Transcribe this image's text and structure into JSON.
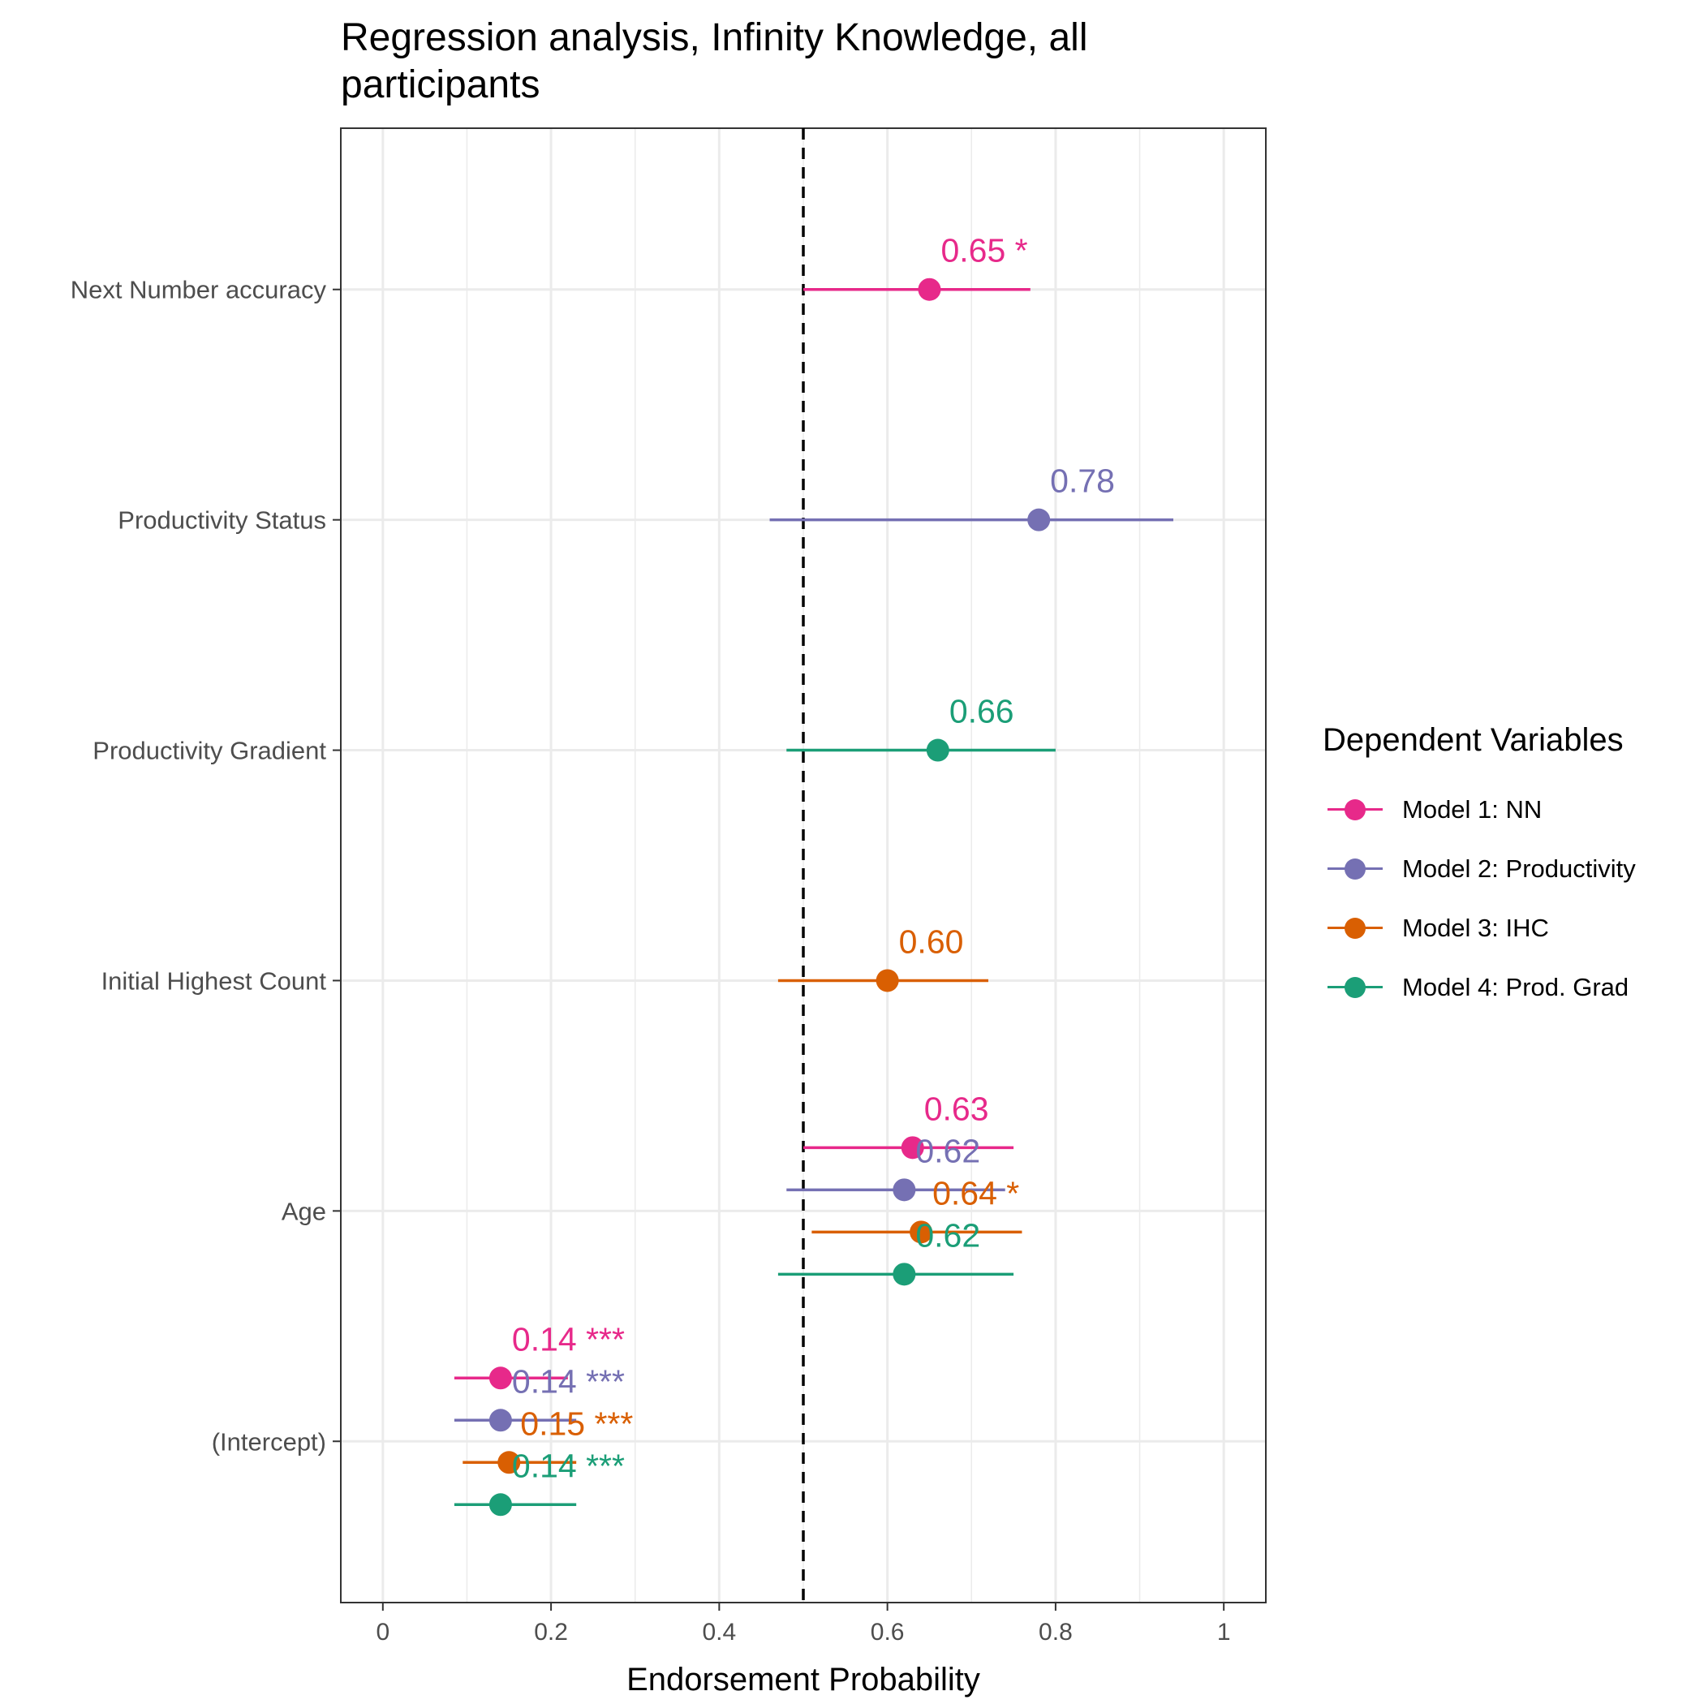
{
  "chart_data": {
    "type": "scatter",
    "title": "Regression analysis, Infinity Knowledge, all participants",
    "xlabel": "Endorsement Probability",
    "ylabel": "",
    "xlim": [
      -0.05,
      1.05
    ],
    "x_ticks": [
      0,
      0.2,
      0.4,
      0.6,
      0.8,
      1
    ],
    "x_tick_labels": [
      "0",
      "0.2",
      "0.4",
      "0.6",
      "0.8",
      "1"
    ],
    "reference_line": 0.5,
    "categories": [
      "Next Number accuracy",
      "Productivity Status",
      "Productivity Gradient",
      "Initial Highest Count",
      "Age",
      "(Intercept)"
    ],
    "legend_title": "Dependent Variables",
    "legend_position": "right",
    "grid": true,
    "series": [
      {
        "name": "Model 1: NN",
        "color": "#E7298A",
        "points": [
          {
            "term": "Next Number accuracy",
            "estimate": 0.65,
            "low": 0.5,
            "high": 0.77,
            "label": "0.65 *"
          },
          {
            "term": "Age",
            "estimate": 0.63,
            "low": 0.5,
            "high": 0.75,
            "label": "0.63"
          },
          {
            "term": "(Intercept)",
            "estimate": 0.14,
            "low": 0.085,
            "high": 0.22,
            "label": "0.14 ***"
          }
        ]
      },
      {
        "name": "Model 2: Productivity",
        "color": "#7570B3",
        "points": [
          {
            "term": "Productivity Status",
            "estimate": 0.78,
            "low": 0.46,
            "high": 0.94,
            "label": "0.78"
          },
          {
            "term": "Age",
            "estimate": 0.62,
            "low": 0.48,
            "high": 0.74,
            "label": "0.62"
          },
          {
            "term": "(Intercept)",
            "estimate": 0.14,
            "low": 0.085,
            "high": 0.23,
            "label": "0.14 ***"
          }
        ]
      },
      {
        "name": "Model 3: IHC",
        "color": "#D95F02",
        "points": [
          {
            "term": "Initial Highest Count",
            "estimate": 0.6,
            "low": 0.47,
            "high": 0.72,
            "label": "0.60"
          },
          {
            "term": "Age",
            "estimate": 0.64,
            "low": 0.51,
            "high": 0.76,
            "label": "0.64 *"
          },
          {
            "term": "(Intercept)",
            "estimate": 0.15,
            "low": 0.095,
            "high": 0.23,
            "label": "0.15 ***"
          }
        ]
      },
      {
        "name": "Model 4: Prod. Grad",
        "color": "#1B9E77",
        "points": [
          {
            "term": "Productivity Gradient",
            "estimate": 0.66,
            "low": 0.48,
            "high": 0.8,
            "label": "0.66"
          },
          {
            "term": "Age",
            "estimate": 0.62,
            "low": 0.47,
            "high": 0.75,
            "label": "0.62"
          },
          {
            "term": "(Intercept)",
            "estimate": 0.14,
            "low": 0.085,
            "high": 0.23,
            "label": "0.14 ***"
          }
        ]
      }
    ]
  }
}
